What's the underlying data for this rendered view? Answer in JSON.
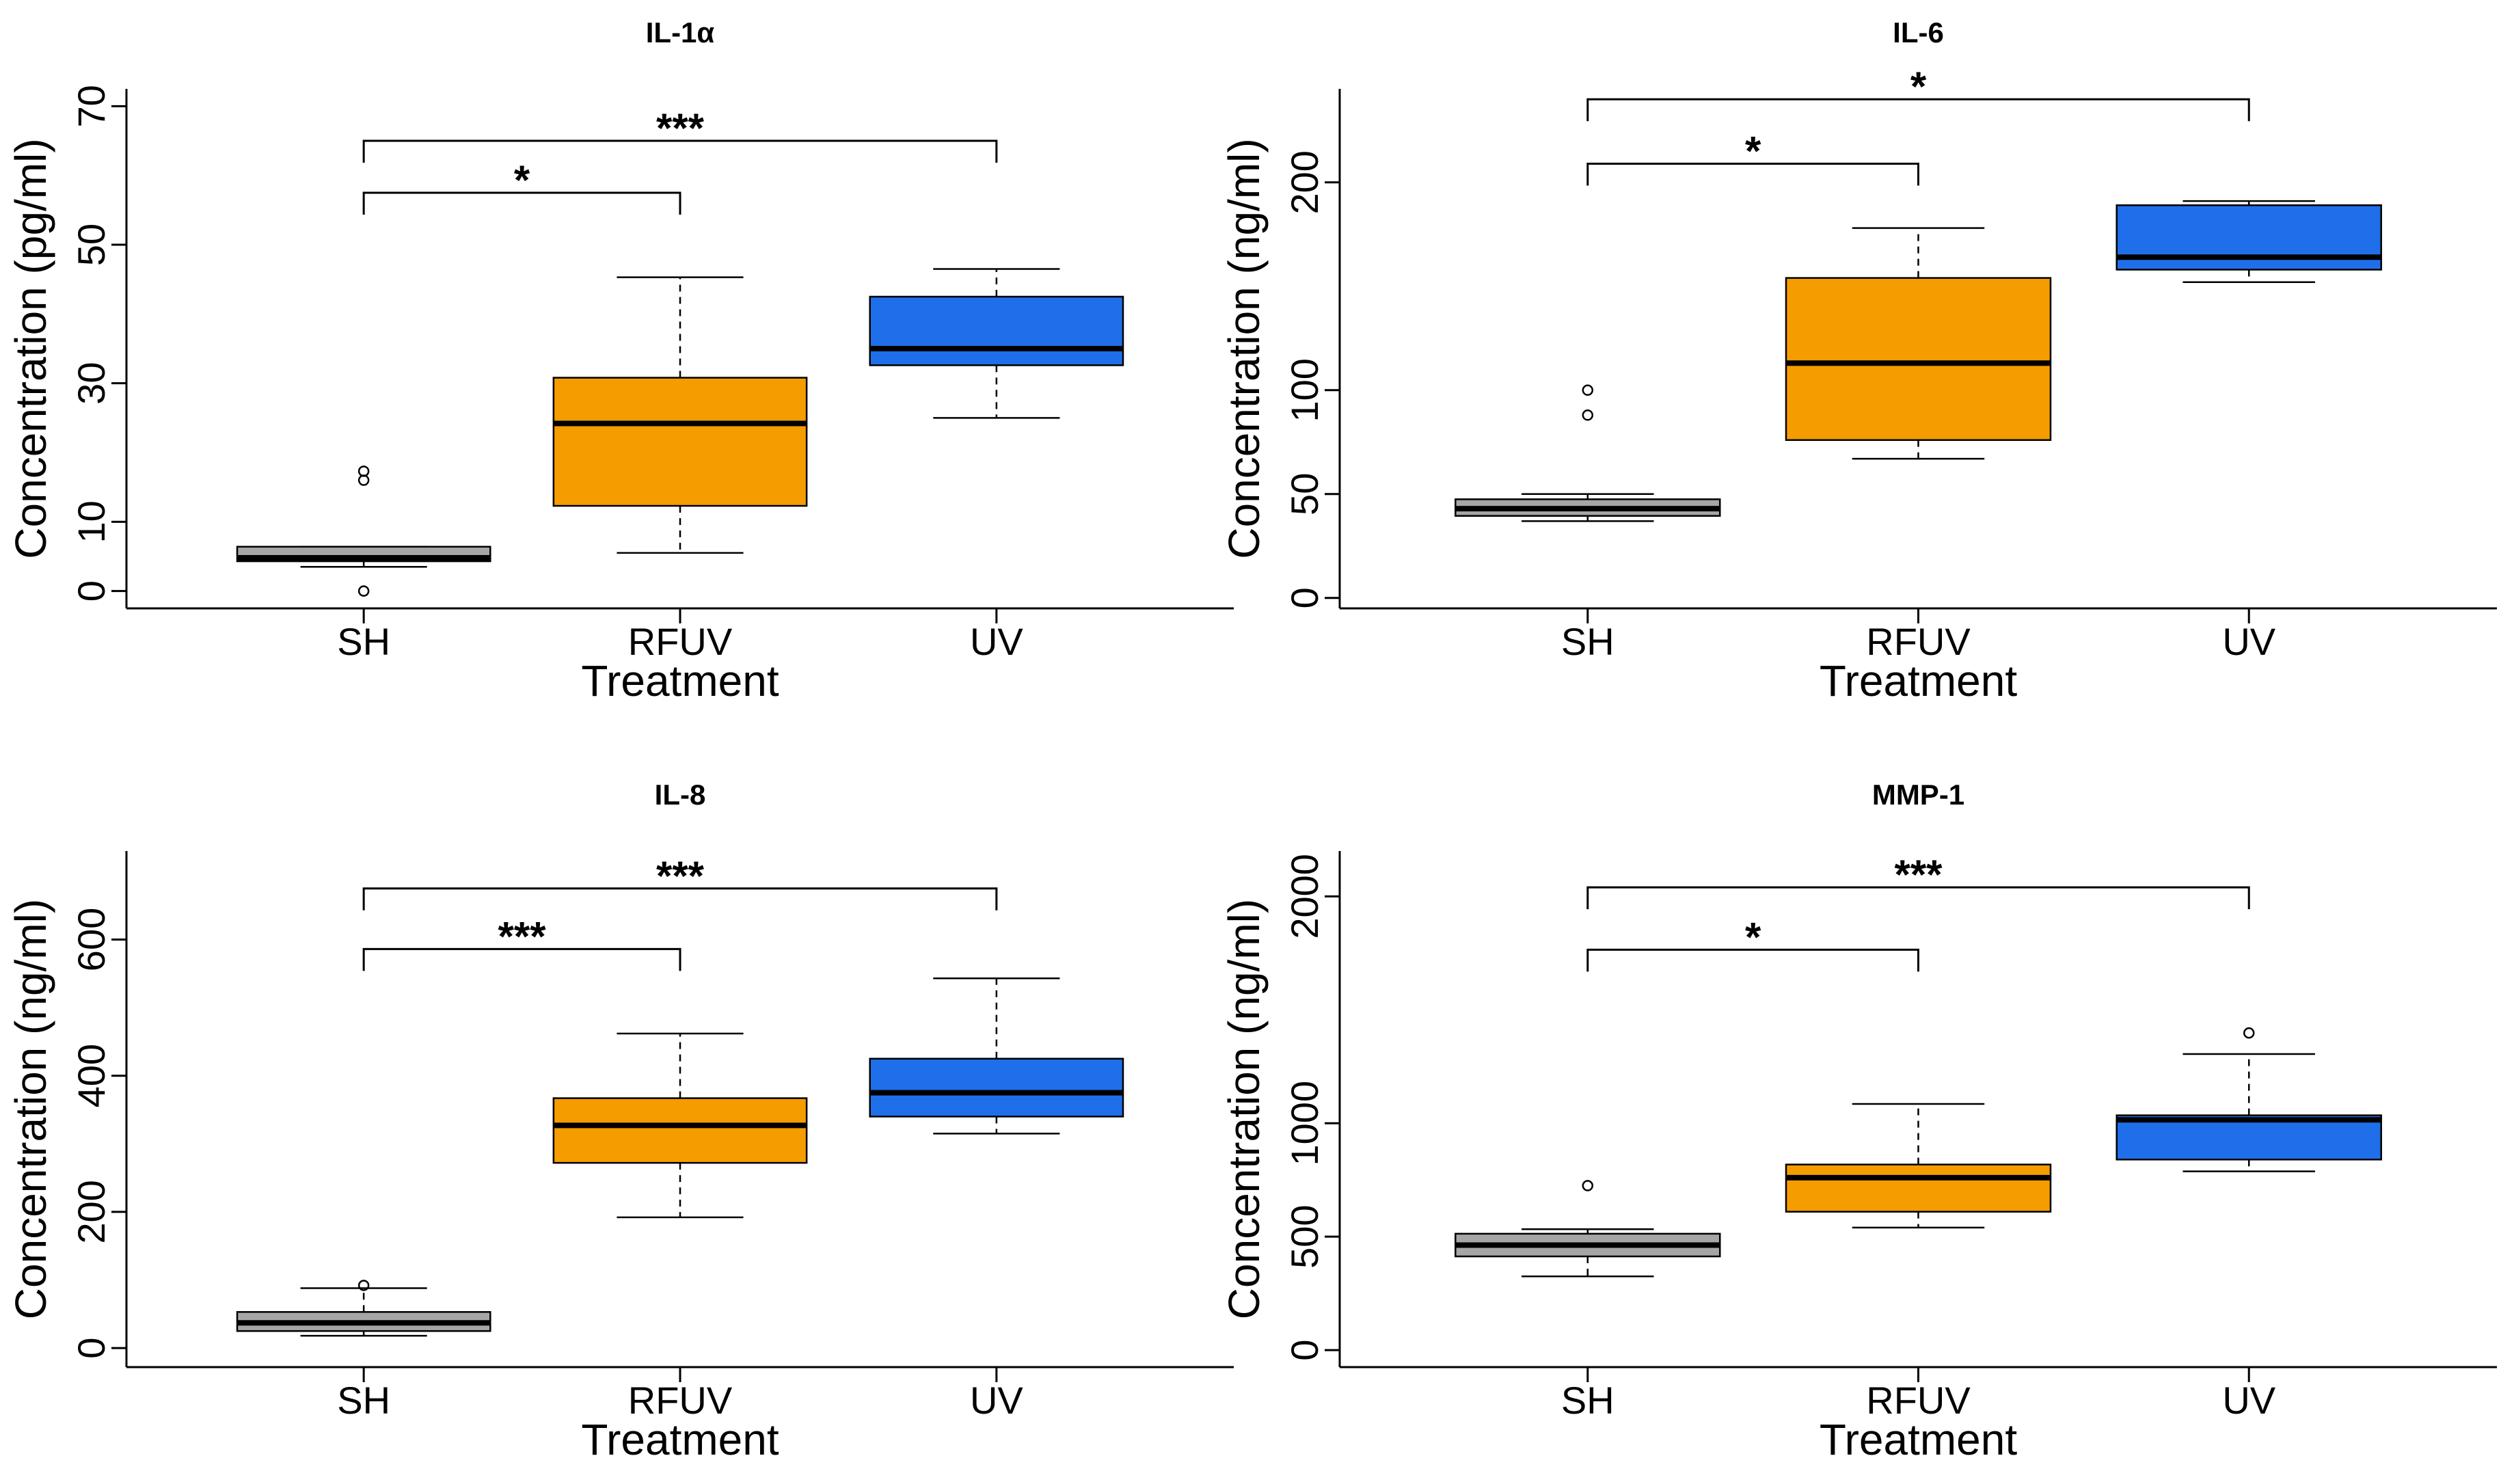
{
  "chart_data": [
    {
      "type": "boxplot",
      "title": "IL-1α",
      "xlabel": "Treatment",
      "ylabel": "Concentration (pg/ml)",
      "categories": [
        "SH",
        "RFUV",
        "UV"
      ],
      "colors": [
        "#a6a6a6",
        "#f59c00",
        "#1f6fea"
      ],
      "yticks": [
        "0",
        "10",
        "30",
        "50",
        "70"
      ],
      "ylim": [
        -2.5,
        72.5
      ],
      "boxes": [
        {
          "category": "SH",
          "min": 3.5,
          "q1": 4.3,
          "median": 4.8,
          "q3": 6.4,
          "max": 6.4,
          "outliers": [
            16,
            17.3,
            0
          ]
        },
        {
          "category": "RFUV",
          "min": 5.5,
          "q1": 12.3,
          "median": 24.2,
          "q3": 30.8,
          "max": 45.3,
          "outliers": []
        },
        {
          "category": "UV",
          "min": 25.0,
          "q1": 32.6,
          "median": 35.0,
          "q3": 42.5,
          "max": 46.5,
          "outliers": []
        }
      ],
      "comparisons": [
        {
          "from": "SH",
          "to": "RFUV",
          "label": "*",
          "y": 57.5
        },
        {
          "from": "SH",
          "to": "UV",
          "label": "***",
          "y": 65.0
        }
      ]
    },
    {
      "type": "boxplot",
      "title": "IL-6",
      "xlabel": "Treatment",
      "ylabel": "Concentration (ng/ml)",
      "categories": [
        "SH",
        "RFUV",
        "UV"
      ],
      "colors": [
        "#a6a6a6",
        "#f59c00",
        "#1f6fea"
      ],
      "yticks": [
        "0",
        "50",
        "100",
        "200"
      ],
      "ylim": [
        -5,
        245
      ],
      "boxes": [
        {
          "category": "SH",
          "min": 37,
          "q1": 39.5,
          "median": 43,
          "q3": 47.5,
          "max": 50,
          "outliers": [
            100,
            88
          ]
        },
        {
          "category": "RFUV",
          "min": 67,
          "q1": 76,
          "median": 113,
          "q3": 154,
          "max": 178,
          "outliers": []
        },
        {
          "category": "UV",
          "min": 152,
          "q1": 158,
          "median": 164,
          "q3": 189,
          "max": 191,
          "outliers": []
        }
      ],
      "comparisons": [
        {
          "from": "SH",
          "to": "RFUV",
          "label": "*",
          "y": 209
        },
        {
          "from": "SH",
          "to": "UV",
          "label": "*",
          "y": 240
        }
      ]
    },
    {
      "type": "boxplot",
      "title": "IL-8",
      "xlabel": "Treatment",
      "ylabel": "Concentration (ng/ml)",
      "categories": [
        "SH",
        "RFUV",
        "UV"
      ],
      "colors": [
        "#a6a6a6",
        "#f59c00",
        "#1f6fea"
      ],
      "yticks": [
        "0",
        "200",
        "400",
        "600"
      ],
      "ylim": [
        -28,
        730
      ],
      "boxes": [
        {
          "category": "SH",
          "min": 18,
          "q1": 25,
          "median": 37,
          "q3": 53,
          "max": 88,
          "outliers": [
            92
          ]
        },
        {
          "category": "RFUV",
          "min": 192,
          "q1": 272,
          "median": 327,
          "q3": 367,
          "max": 462,
          "outliers": []
        },
        {
          "category": "UV",
          "min": 315,
          "q1": 340,
          "median": 375,
          "q3": 425,
          "max": 543,
          "outliers": []
        }
      ],
      "comparisons": [
        {
          "from": "SH",
          "to": "RFUV",
          "label": "***",
          "y": 586
        },
        {
          "from": "SH",
          "to": "UV",
          "label": "***",
          "y": 675
        }
      ]
    },
    {
      "type": "boxplot",
      "title": "MMP-1",
      "xlabel": "Treatment",
      "ylabel": "Concentration (ng/ml)",
      "categories": [
        "SH",
        "RFUV",
        "UV"
      ],
      "colors": [
        "#a6a6a6",
        "#f59c00",
        "#1f6fea"
      ],
      "yticks": [
        "0",
        "500",
        "1000",
        "2000"
      ],
      "ylim": [
        -75,
        2200
      ],
      "boxes": [
        {
          "category": "SH",
          "min": 325,
          "q1": 413,
          "median": 463,
          "q3": 513,
          "max": 533,
          "outliers": [
            725
          ]
        },
        {
          "category": "RFUV",
          "min": 540,
          "q1": 610,
          "median": 760,
          "q3": 818,
          "max": 1085,
          "outliers": []
        },
        {
          "category": "UV",
          "min": 788,
          "q1": 840,
          "median": 1015,
          "q3": 1035,
          "max": 1305,
          "outliers": [
            1398
          ]
        }
      ],
      "comparisons": [
        {
          "from": "SH",
          "to": "RFUV",
          "label": "*",
          "y": 1765
        },
        {
          "from": "SH",
          "to": "UV",
          "label": "***",
          "y": 2040
        }
      ]
    }
  ]
}
